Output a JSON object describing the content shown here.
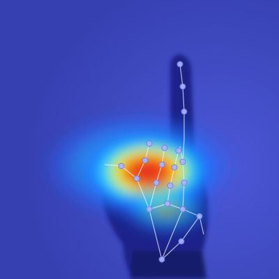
{
  "scene": {
    "subject": "hand-pointing-index-finger",
    "overlay": "saliency-heatmap",
    "keypoint_count": 21
  },
  "colors": {
    "background": "#3a44b8",
    "background_light": "#4b57d6",
    "hand": "#1c2288",
    "hand_shadow": "#151a6c",
    "heat_cold": "#1e6cff",
    "heat_cool": "#22d8ff",
    "heat_mid": "#f4f12a",
    "heat_warm": "#ff8a16",
    "heat_hot": "#e3161c",
    "skeleton": "#e8f0ff",
    "keypoint": "#a8b4ff"
  },
  "icons": {
    "keypoints": "keypoint-marker",
    "skeleton": "skeleton-line"
  }
}
